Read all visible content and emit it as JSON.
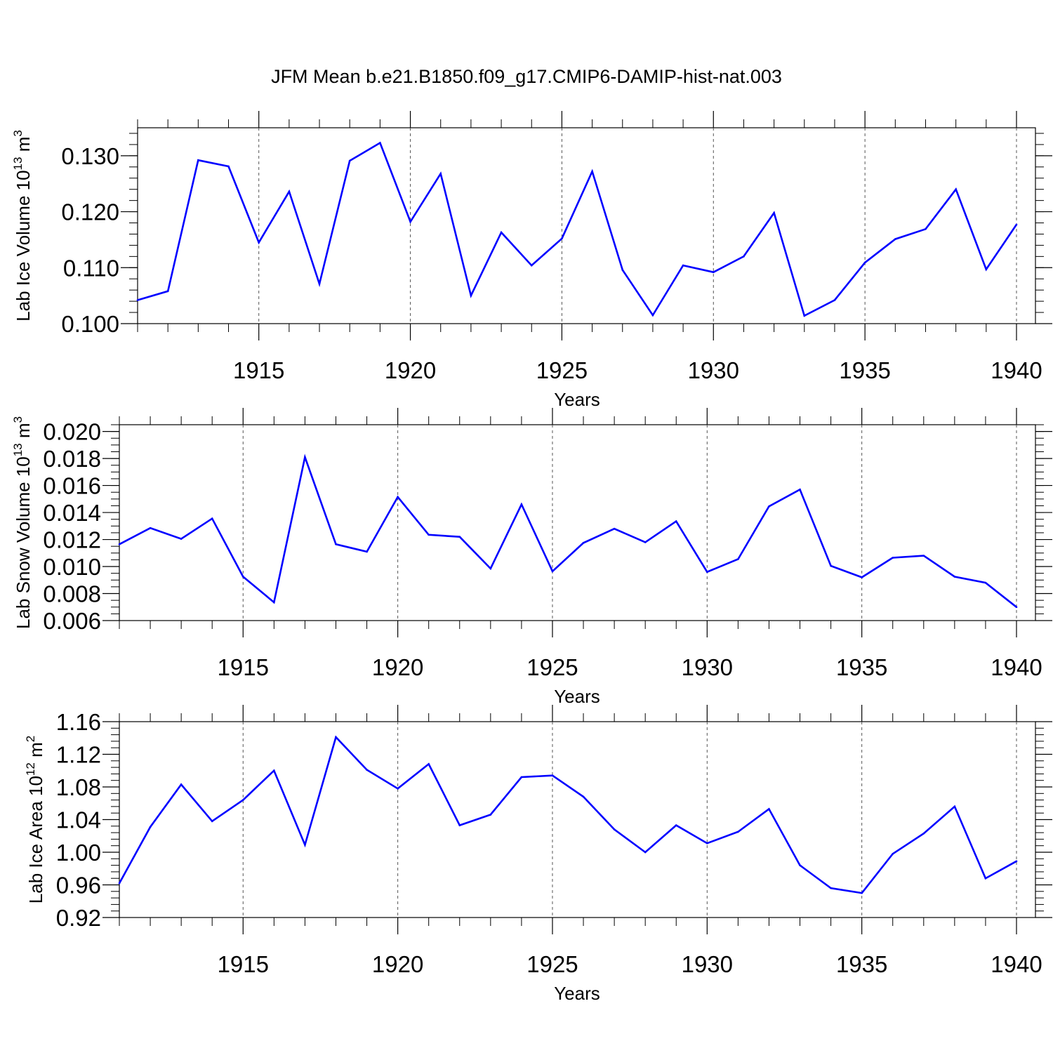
{
  "title": "JFM Mean b.e21.B1850.f09_g17.CMIP6-DAMIP-hist-nat.003",
  "line_color": "#0000ff",
  "chart_data": [
    {
      "type": "line",
      "title": "JFM Mean b.e21.B1850.f09_g17.CMIP6-DAMIP-hist-nat.003",
      "xlabel": "Years",
      "ylabel_text": "Lab Ice Volume 10",
      "ylabel_exp": "13",
      "ylabel_unit": " m",
      "ylabel_unit_exp": "3",
      "xlim": [
        1911,
        1940
      ],
      "ylim": [
        0.1,
        0.135
      ],
      "x_ticks": [
        1915,
        1920,
        1925,
        1930,
        1935,
        1940
      ],
      "x_tick_labels": [
        "1915",
        "1920",
        "1925",
        "1930",
        "1935",
        "1940"
      ],
      "y_ticks": [
        0.1,
        0.11,
        0.12,
        0.13
      ],
      "y_tick_labels": [
        "0.100",
        "0.110",
        "0.120",
        "0.130"
      ],
      "y_minor_step": 0.002,
      "grid": "vertical dashed at major x ticks",
      "x": [
        1911,
        1912,
        1913,
        1914,
        1915,
        1916,
        1917,
        1918,
        1919,
        1920,
        1921,
        1922,
        1923,
        1924,
        1925,
        1926,
        1927,
        1928,
        1929,
        1930,
        1931,
        1932,
        1933,
        1934,
        1935,
        1936,
        1937,
        1938,
        1939,
        1940
      ],
      "series": [
        {
          "name": "Lab Ice Volume",
          "values": [
            0.1042,
            0.1058,
            0.1292,
            0.1281,
            0.1145,
            0.1236,
            0.1071,
            0.1291,
            0.1323,
            0.1182,
            0.1268,
            0.105,
            0.1163,
            0.1104,
            0.1152,
            0.1272,
            0.1096,
            0.1015,
            0.1104,
            0.1092,
            0.112,
            0.1198,
            0.1014,
            0.1042,
            0.1109,
            0.1151,
            0.1169,
            0.124,
            0.1097,
            0.1177
          ]
        }
      ]
    },
    {
      "type": "line",
      "xlabel": "Years",
      "ylabel_text": "Lab Snow Volume 10",
      "ylabel_exp": "13",
      "ylabel_unit": " m",
      "ylabel_unit_exp": "3",
      "xlim": [
        1911,
        1940
      ],
      "ylim": [
        0.006,
        0.0205
      ],
      "x_ticks": [
        1915,
        1920,
        1925,
        1930,
        1935,
        1940
      ],
      "x_tick_labels": [
        "1915",
        "1920",
        "1925",
        "1930",
        "1935",
        "1940"
      ],
      "y_ticks": [
        0.006,
        0.008,
        0.01,
        0.012,
        0.014,
        0.016,
        0.018,
        0.02
      ],
      "y_tick_labels": [
        "0.006",
        "0.008",
        "0.010",
        "0.012",
        "0.014",
        "0.016",
        "0.018",
        "0.020"
      ],
      "y_minor_step": 0.0005,
      "grid": "vertical dashed at major x ticks",
      "x": [
        1911,
        1912,
        1913,
        1914,
        1915,
        1916,
        1917,
        1918,
        1919,
        1920,
        1921,
        1922,
        1923,
        1924,
        1925,
        1926,
        1927,
        1928,
        1929,
        1930,
        1931,
        1932,
        1933,
        1934,
        1935,
        1936,
        1937,
        1938,
        1939,
        1940
      ],
      "series": [
        {
          "name": "Lab Snow Volume",
          "values": [
            0.01165,
            0.01285,
            0.01205,
            0.01355,
            0.00925,
            0.00735,
            0.0181,
            0.01165,
            0.0111,
            0.01515,
            0.01235,
            0.0122,
            0.00985,
            0.0146,
            0.00965,
            0.01175,
            0.0128,
            0.0118,
            0.01335,
            0.0096,
            0.01055,
            0.01445,
            0.0157,
            0.01005,
            0.0092,
            0.01065,
            0.0108,
            0.00925,
            0.0088,
            0.007
          ]
        }
      ]
    },
    {
      "type": "line",
      "xlabel": "Years",
      "ylabel_text": "Lab Ice Area 10",
      "ylabel_exp": "12",
      "ylabel_unit": " m",
      "ylabel_unit_exp": "2",
      "xlim": [
        1911,
        1940
      ],
      "ylim": [
        0.92,
        1.16
      ],
      "x_ticks": [
        1915,
        1920,
        1925,
        1930,
        1935,
        1940
      ],
      "x_tick_labels": [
        "1915",
        "1920",
        "1925",
        "1930",
        "1935",
        "1940"
      ],
      "y_ticks": [
        0.92,
        0.96,
        1.0,
        1.04,
        1.08,
        1.12,
        1.16
      ],
      "y_tick_labels": [
        "0.92",
        "0.96",
        "1.00",
        "1.04",
        "1.08",
        "1.12",
        "1.16"
      ],
      "y_minor_step": 0.008,
      "grid": "vertical dashed at major x ticks",
      "x": [
        1911,
        1912,
        1913,
        1914,
        1915,
        1916,
        1917,
        1918,
        1919,
        1920,
        1921,
        1922,
        1923,
        1924,
        1925,
        1926,
        1927,
        1928,
        1929,
        1930,
        1931,
        1932,
        1933,
        1934,
        1935,
        1936,
        1937,
        1938,
        1939,
        1940
      ],
      "series": [
        {
          "name": "Lab Ice Area",
          "values": [
            0.962,
            1.031,
            1.083,
            1.038,
            1.064,
            1.1,
            1.009,
            1.141,
            1.101,
            1.078,
            1.108,
            1.033,
            1.046,
            1.092,
            1.094,
            1.068,
            1.028,
            1.0,
            1.033,
            1.011,
            1.025,
            1.053,
            0.984,
            0.956,
            0.95,
            0.998,
            1.023,
            1.056,
            0.968,
            0.989
          ]
        }
      ]
    }
  ]
}
